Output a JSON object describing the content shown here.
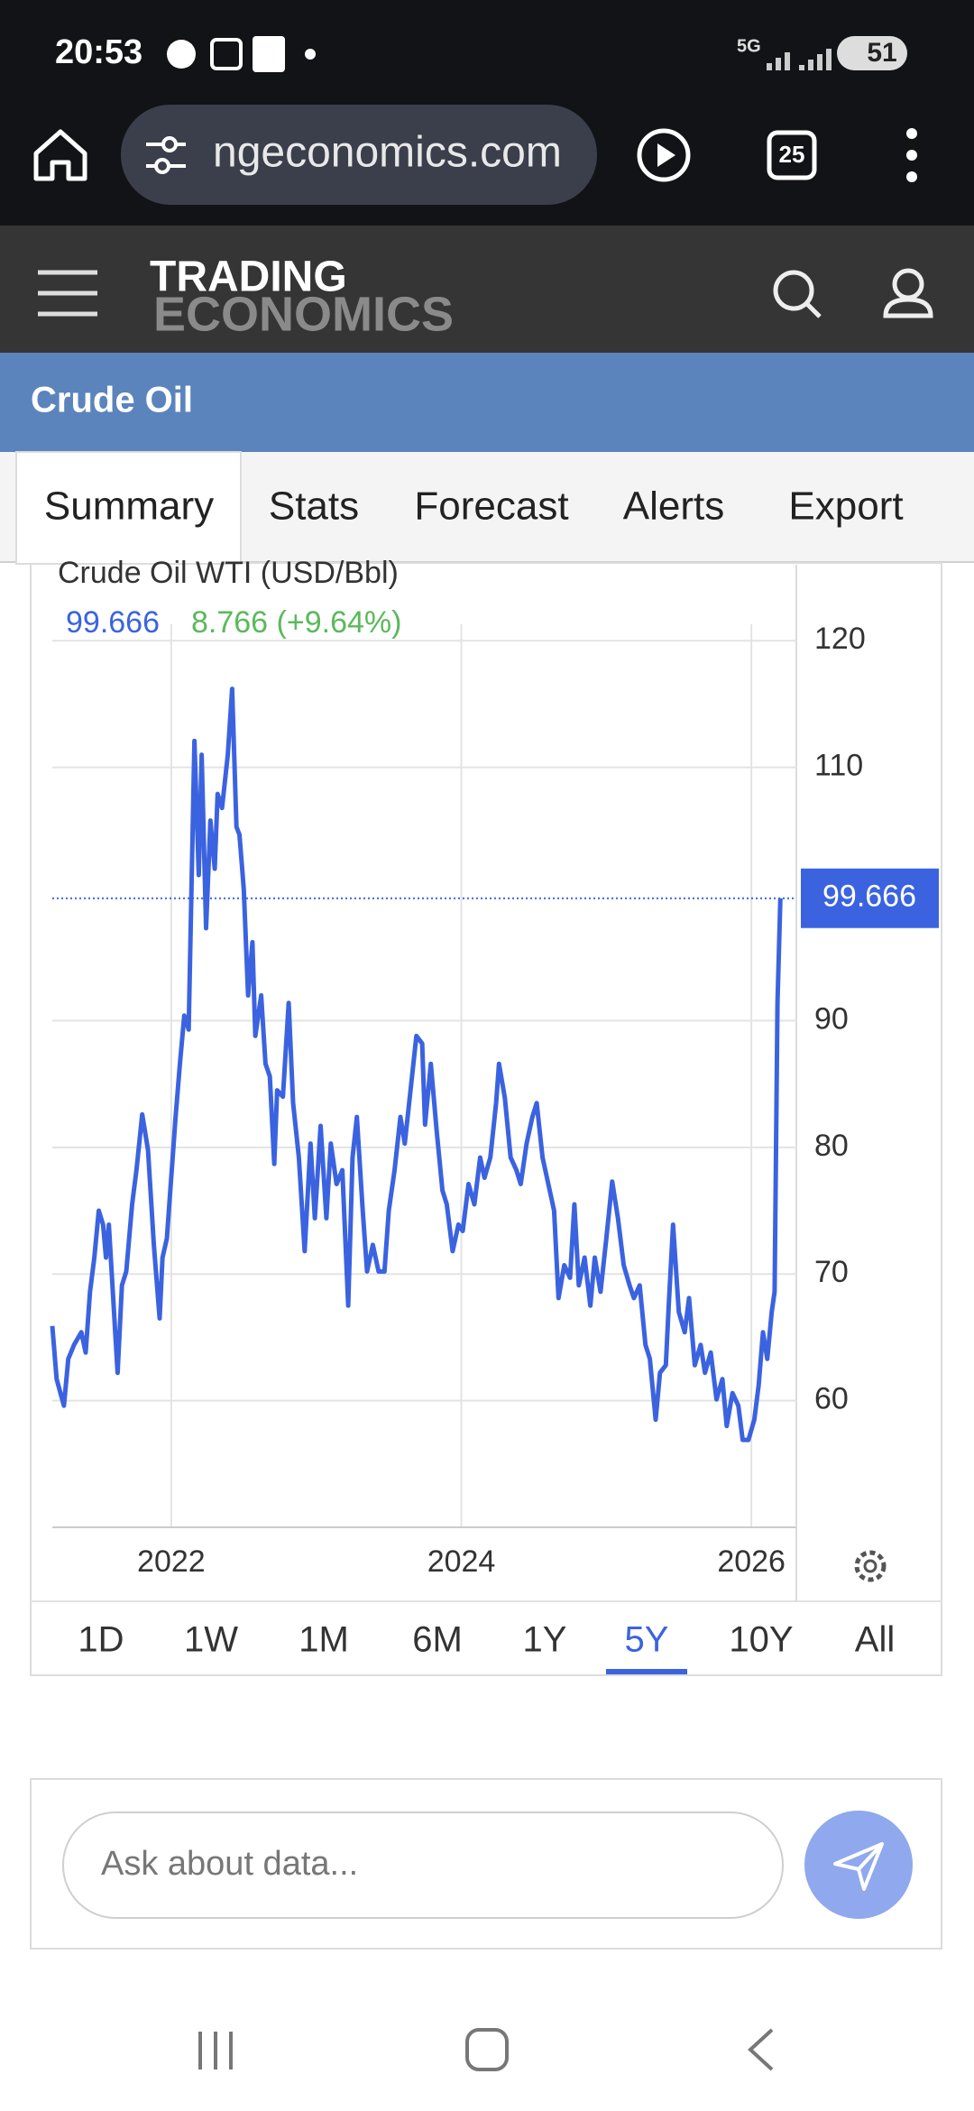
{
  "status_bar": {
    "time": "20:53",
    "network": "5G",
    "battery": 51
  },
  "browser": {
    "url": "ngeconomics.com",
    "tab_count": 25
  },
  "site": {
    "logo_line1": "TRADING",
    "logo_line2": "ECONOMICS",
    "page_title": "Crude Oil"
  },
  "tabs": [
    "Summary",
    "Stats",
    "Forecast",
    "Alerts",
    "Export"
  ],
  "chart_data": {
    "type": "line",
    "title": "Crude Oil WTI (USD/Bbl)",
    "change": "8.766 (+9.64%)",
    "color": "#3b63e0",
    "x": [
      2021.18,
      2021.21,
      2021.26,
      2021.29,
      2021.33,
      2021.38,
      2021.41,
      2021.44,
      2021.47,
      2021.5,
      2021.53,
      2021.55,
      2021.57,
      2021.6,
      2021.63,
      2021.66,
      2021.69,
      2021.73,
      2021.76,
      2021.8,
      2021.84,
      2021.88,
      2021.92,
      2021.94,
      2021.97,
      2022.03,
      2022.06,
      2022.09,
      2022.12,
      2022.16,
      2022.19,
      2022.21,
      2022.24,
      2022.27,
      2022.3,
      2022.32,
      2022.35,
      2022.39,
      2022.42,
      2022.45,
      2022.47,
      2022.5,
      2022.53,
      2022.56,
      2022.58,
      2022.62,
      2022.65,
      2022.68,
      2022.71,
      2022.73,
      2022.77,
      2022.81,
      2022.84,
      2022.88,
      2022.92,
      2022.96,
      2022.99,
      2023.03,
      2023.07,
      2023.1,
      2023.14,
      2023.18,
      2023.22,
      2023.25,
      2023.28,
      2023.32,
      2023.35,
      2023.39,
      2023.43,
      2023.47,
      2023.5,
      2023.54,
      2023.58,
      2023.61,
      2023.65,
      2023.69,
      2023.73,
      2023.75,
      2023.79,
      2023.83,
      2023.87,
      2023.9,
      2023.94,
      2023.98,
      2024.01,
      2024.05,
      2024.09,
      2024.13,
      2024.16,
      2024.2,
      2024.24,
      2024.26,
      2024.3,
      2024.34,
      2024.38,
      2024.41,
      2024.45,
      2024.49,
      2024.52,
      2024.56,
      2024.6,
      2024.64,
      2024.67,
      2024.71,
      2024.75,
      2024.78,
      2024.81,
      2024.85,
      2024.89,
      2024.92,
      2024.96,
      2025.0,
      2025.04,
      2025.08,
      2025.12,
      2025.16,
      2025.19,
      2025.23,
      2025.27,
      2025.3,
      2025.34,
      2025.37,
      2025.41,
      2025.43,
      2025.46,
      2025.5,
      2025.54,
      2025.57,
      2025.61,
      2025.65,
      2025.68,
      2025.72,
      2025.76,
      2025.8,
      2025.83,
      2025.87,
      2025.91,
      2025.94,
      2025.98,
      2026.02,
      2026.05,
      2026.08,
      2026.11,
      2026.14,
      2026.16,
      2026.18,
      2026.2
    ],
    "values": [
      65.9,
      61.7,
      59.6,
      63.3,
      64.4,
      65.4,
      63.8,
      68.6,
      71.3,
      75.0,
      73.9,
      71.3,
      73.9,
      68.1,
      62.2,
      69.1,
      70.2,
      75.5,
      78.2,
      82.6,
      79.8,
      72.3,
      66.5,
      71.3,
      72.8,
      82.4,
      86.6,
      90.4,
      89.3,
      112.1,
      101.5,
      111.0,
      97.3,
      105.8,
      102.0,
      107.9,
      106.8,
      111.0,
      116.2,
      105.3,
      104.7,
      100.4,
      92.0,
      96.2,
      88.8,
      92.0,
      86.6,
      85.6,
      78.7,
      84.5,
      84.0,
      91.4,
      83.5,
      79.2,
      71.8,
      80.3,
      74.4,
      81.7,
      74.4,
      80.3,
      77.1,
      78.2,
      67.5,
      79.2,
      82.4,
      75.0,
      70.2,
      72.3,
      70.2,
      70.2,
      75.0,
      78.2,
      82.4,
      80.3,
      84.5,
      88.8,
      88.2,
      81.8,
      86.6,
      81.3,
      76.6,
      75.5,
      71.8,
      73.9,
      73.4,
      77.1,
      75.5,
      79.2,
      77.6,
      79.2,
      83.5,
      86.6,
      83.9,
      79.2,
      78.2,
      77.1,
      80.3,
      82.4,
      83.5,
      79.2,
      77.1,
      75.0,
      68.1,
      70.7,
      69.7,
      75.5,
      69.1,
      71.3,
      67.5,
      71.3,
      68.6,
      72.8,
      77.3,
      74.4,
      70.7,
      69.1,
      68.1,
      69.1,
      64.4,
      63.3,
      58.5,
      62.2,
      62.8,
      67.5,
      73.9,
      67.0,
      65.4,
      68.1,
      62.8,
      64.4,
      62.2,
      63.8,
      60.1,
      61.7,
      58.0,
      60.6,
      59.6,
      56.9,
      56.9,
      58.5,
      61.2,
      65.4,
      63.3,
      67.0,
      68.6,
      91.4,
      99.666
    ],
    "xlim": [
      2021.18,
      2026.31
    ],
    "xticks": [
      2022,
      2024,
      2026
    ],
    "ylim": [
      50,
      121.3
    ],
    "yticks": [
      60,
      70,
      80,
      90,
      110,
      120
    ],
    "grid": true
  },
  "ranges": [
    "1D",
    "1W",
    "1M",
    "6M",
    "1Y",
    "5Y",
    "10Y",
    "All"
  ],
  "selected_range": "5Y",
  "chat": {
    "placeholder": "Ask about data..."
  }
}
